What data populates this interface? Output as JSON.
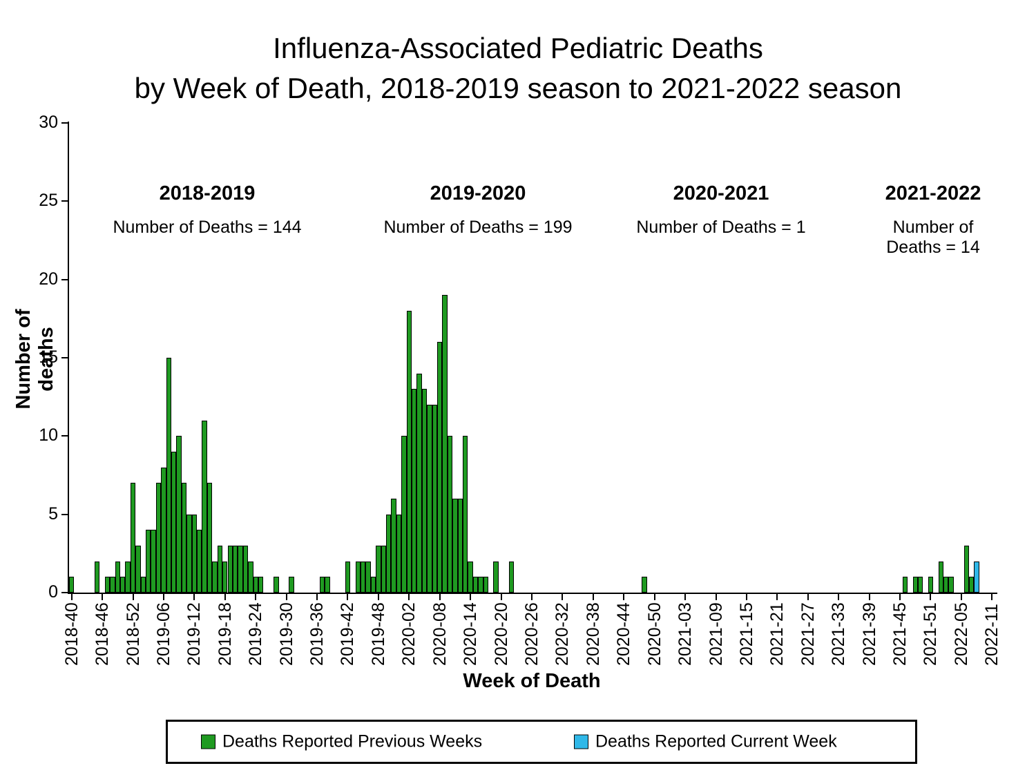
{
  "chart_data": {
    "type": "bar",
    "title": "Influenza-Associated Pediatric Deaths by Week of Death, 2018-2019 season to 2021-2022 season",
    "title_lines": [
      "Influenza-Associated Pediatric Deaths",
      "by Week of Death, 2018-2019 season to 2021-2022 season"
    ],
    "xlabel": "Week of Death",
    "ylabel": "Number of deaths",
    "ylim": [
      0,
      30
    ],
    "yticks": [
      0,
      5,
      10,
      15,
      20,
      25,
      30
    ],
    "grid": false,
    "legend_position": "bottom",
    "x_tick_every": 6,
    "x_tick_labels": [
      "2018-40",
      "2018-46",
      "2018-52",
      "2019-06",
      "2019-12",
      "2019-18",
      "2019-24",
      "2019-30",
      "2019-36",
      "2019-42",
      "2019-48",
      "2020-02",
      "2020-08",
      "2020-14",
      "2020-20",
      "2020-26",
      "2020-32",
      "2020-38",
      "2020-44",
      "2020-50",
      "2021-03",
      "2021-09",
      "2021-15",
      "2021-21",
      "2021-27",
      "2021-33",
      "2021-39",
      "2021-45",
      "2021-51",
      "2022-05",
      "2022-11"
    ],
    "num_weeks": 181,
    "values": [
      1,
      0,
      0,
      0,
      0,
      2,
      0,
      1,
      1,
      2,
      1,
      2,
      7,
      3,
      1,
      4,
      4,
      7,
      8,
      15,
      9,
      10,
      7,
      5,
      5,
      4,
      11,
      7,
      2,
      3,
      2,
      3,
      3,
      3,
      3,
      2,
      1,
      1,
      0,
      0,
      1,
      0,
      0,
      1,
      0,
      0,
      0,
      0,
      0,
      1,
      1,
      0,
      0,
      0,
      2,
      0,
      2,
      2,
      2,
      1,
      3,
      3,
      5,
      6,
      5,
      10,
      18,
      13,
      14,
      13,
      12,
      12,
      16,
      19,
      10,
      6,
      6,
      10,
      2,
      1,
      1,
      1,
      0,
      2,
      0,
      0,
      2,
      0,
      0,
      0,
      0,
      0,
      0,
      0,
      0,
      0,
      0,
      0,
      0,
      0,
      0,
      0,
      0,
      0,
      0,
      0,
      0,
      0,
      0,
      0,
      0,
      0,
      1,
      0,
      0,
      0,
      0,
      0,
      0,
      0,
      0,
      0,
      0,
      0,
      0,
      0,
      0,
      0,
      0,
      0,
      0,
      0,
      0,
      0,
      0,
      0,
      0,
      0,
      0,
      0,
      0,
      0,
      0,
      0,
      0,
      0,
      0,
      0,
      0,
      0,
      0,
      0,
      0,
      0,
      0,
      0,
      0,
      0,
      0,
      0,
      0,
      0,
      0,
      1,
      0,
      1,
      1,
      0,
      1,
      0,
      2,
      1,
      1,
      0,
      0,
      3,
      1,
      2,
      0,
      0,
      0
    ],
    "current_week_index": 177,
    "current_week_value": 2,
    "annotations": [
      {
        "season": "2018-2019",
        "deaths_label": "Number of Deaths = 144",
        "total_deaths": 144
      },
      {
        "season": "2019-2020",
        "deaths_label": "Number of Deaths = 199",
        "total_deaths": 199
      },
      {
        "season": "2020-2021",
        "deaths_label": "Number of Deaths = 1",
        "total_deaths": 1
      },
      {
        "season": "2021-2022",
        "deaths_label": "Number of Deaths = 14",
        "total_deaths": 14
      }
    ],
    "legend": {
      "previous_label": "Deaths Reported Previous Weeks",
      "current_label": "Deaths Reported Current Week"
    },
    "colors": {
      "previous": "#1f9a21",
      "current": "#30b8e8",
      "axis": "#000000"
    }
  }
}
